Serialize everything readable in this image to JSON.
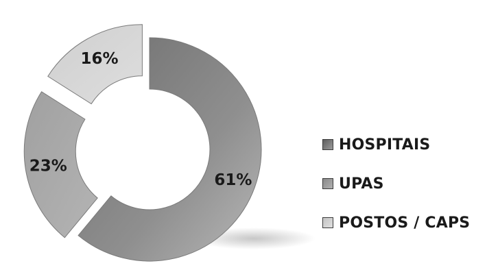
{
  "chart_data": {
    "type": "pie",
    "style": "exploded-donut",
    "categories": [
      "HOSPITAIS",
      "UPAS",
      "POSTOS / CAPS"
    ],
    "values": [
      61,
      23,
      16
    ],
    "labels": [
      "61%",
      "23%",
      "16%"
    ],
    "colors": [
      "#8c8c8c",
      "#a6a6a6",
      "#d4d4d4"
    ],
    "legend_position": "right"
  }
}
